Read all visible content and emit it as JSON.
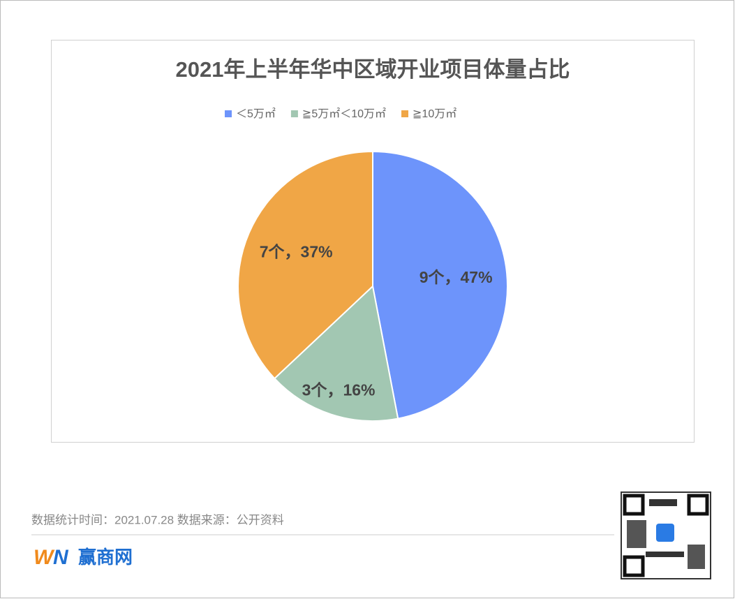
{
  "chart_data": {
    "type": "pie",
    "title": "2021年上半年华中区域开业项目体量占比",
    "categories": [
      "＜5万㎡",
      "≧5万㎡＜10万㎡",
      "≧10万㎡"
    ],
    "values": [
      47,
      16,
      37
    ],
    "value_labels": [
      "9个，47%",
      "3个，16%",
      "7个，37%"
    ],
    "colors": [
      "#6d94fb",
      "#a2c7b2",
      "#f0a646"
    ],
    "legend": "top"
  },
  "footer": {
    "note": "数据统计时间：2021.07.28  数据来源：公开资料",
    "logo_text": "赢商网"
  }
}
